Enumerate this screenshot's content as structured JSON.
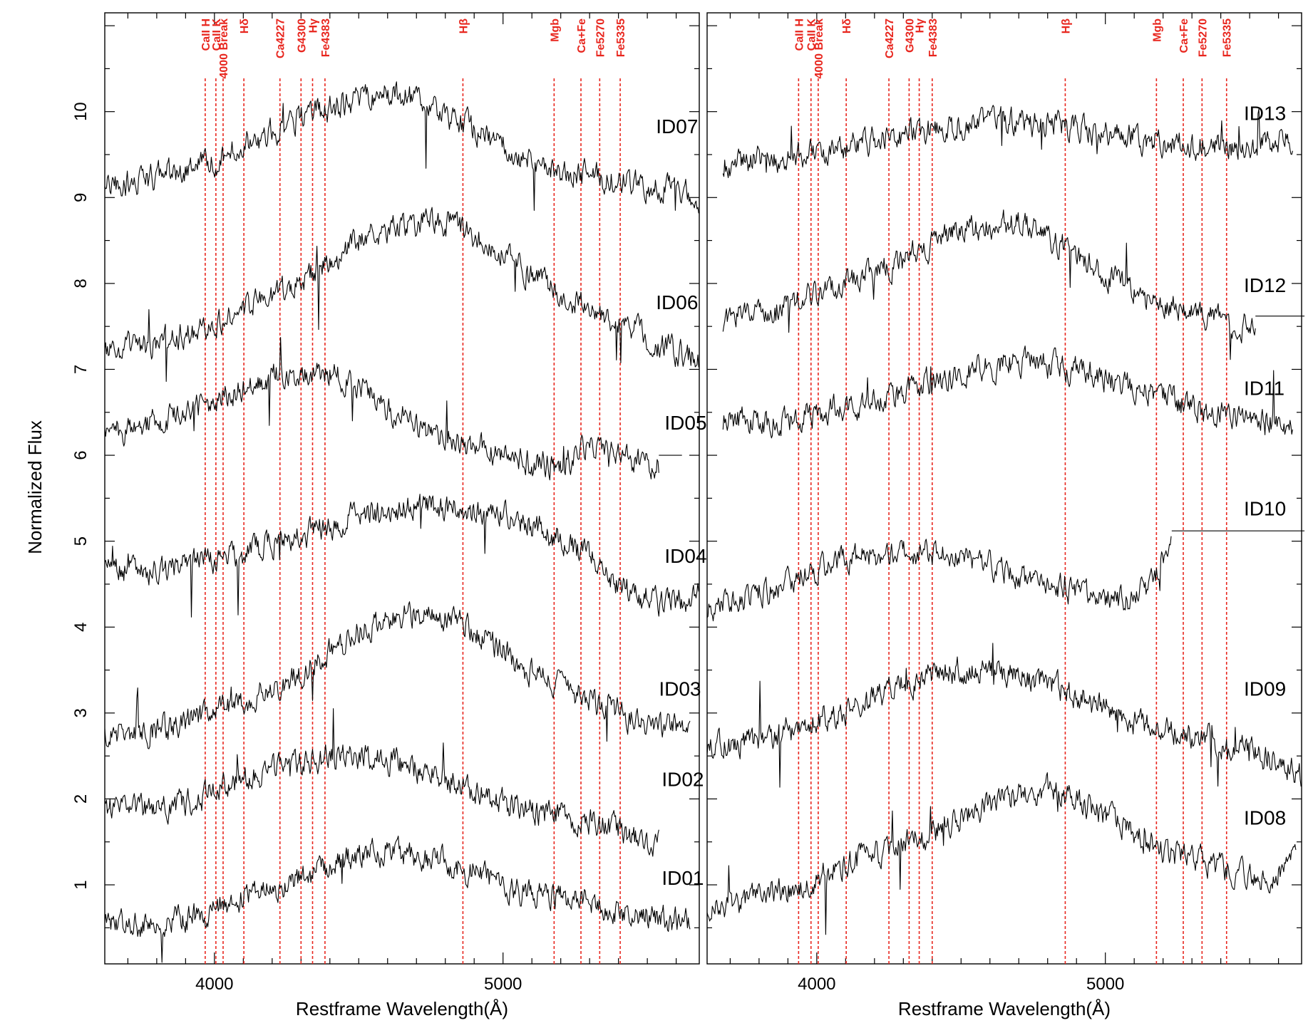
{
  "figure": {
    "ylabel": "Normalized Flux",
    "colors": {
      "spectrum": "#000000",
      "lines": "#e8261e",
      "axes": "#000000"
    }
  },
  "chart_data": [
    {
      "type": "line",
      "panel": "left",
      "xlabel": "Restframe Wavelength(Å)",
      "ylabel": "Normalized Flux",
      "xlim": [
        3620,
        5680
      ],
      "ylim": [
        0.08,
        11.15
      ],
      "xticks": [
        4000,
        5000
      ],
      "xminor_step": 100,
      "yticks": [
        1,
        2,
        3,
        4,
        5,
        6,
        7,
        8,
        9,
        10
      ],
      "yminor_step": 0.5,
      "grid": false,
      "line_marks": [
        {
          "label": "CaII H",
          "x": 3968
        },
        {
          "label": "CaII K",
          "x": 4005
        },
        {
          "label": "4000 Break",
          "x": 4030
        },
        {
          "label": "Hδ",
          "x": 4102
        },
        {
          "label": "Ca4227",
          "x": 4227
        },
        {
          "label": "G4300",
          "x": 4300
        },
        {
          "label": "Hγ",
          "x": 4340
        },
        {
          "label": "Fe4383",
          "x": 4383
        },
        {
          "label": "Hβ",
          "x": 4861
        },
        {
          "label": "Mgb",
          "x": 5177
        },
        {
          "label": "Ca+Fe",
          "x": 5270
        },
        {
          "label": "Fe5270",
          "x": 5335
        },
        {
          "label": "Fe5335",
          "x": 5406
        }
      ],
      "series": [
        {
          "name": "ID07",
          "label_x": 5530,
          "label_y": 9.75,
          "x_end": 5680,
          "x": [
            3620,
            3800,
            3950,
            4100,
            4250,
            4400,
            4500,
            4600,
            4700,
            4800,
            4900,
            5000,
            5100,
            5200,
            5300,
            5400,
            5480,
            5560,
            5680
          ],
          "y": [
            9.1,
            9.25,
            9.35,
            9.6,
            9.85,
            10.05,
            10.15,
            10.2,
            10.15,
            9.95,
            9.8,
            9.6,
            9.4,
            9.3,
            9.25,
            9.2,
            9.15,
            9.1,
            9.0
          ]
        },
        {
          "name": "ID06",
          "label_x": 5530,
          "label_y": 7.7,
          "x_end": 5680,
          "x": [
            3620,
            3800,
            3950,
            4100,
            4250,
            4400,
            4500,
            4600,
            4700,
            4800,
            4900,
            5000,
            5100,
            5200,
            5300,
            5400,
            5480,
            5560,
            5680
          ],
          "y": [
            7.2,
            7.3,
            7.5,
            7.7,
            7.95,
            8.25,
            8.5,
            8.65,
            8.7,
            8.7,
            8.55,
            8.35,
            8.1,
            7.9,
            7.7,
            7.55,
            7.4,
            7.25,
            7.1
          ]
        },
        {
          "name": "ID05",
          "label_x": 5560,
          "label_y": 6.3,
          "x_end": 5620,
          "tail_y": 6.0,
          "x": [
            3620,
            3800,
            3950,
            4100,
            4250,
            4400,
            4500,
            4600,
            4700,
            4800,
            4900,
            5000,
            5100,
            5200,
            5300,
            5400,
            5480,
            5540
          ],
          "y": [
            6.25,
            6.4,
            6.55,
            6.8,
            6.95,
            6.95,
            6.8,
            6.55,
            6.35,
            6.2,
            6.1,
            6.0,
            5.9,
            5.9,
            6.1,
            6.0,
            5.9,
            5.9
          ]
        },
        {
          "name": "ID04",
          "label_x": 5560,
          "label_y": 4.75,
          "x_end": 5680,
          "x": [
            3620,
            3800,
            3950,
            4100,
            4250,
            4400,
            4500,
            4600,
            4700,
            4800,
            4900,
            5000,
            5100,
            5200,
            5300,
            5400,
            5480,
            5560,
            5680
          ],
          "y": [
            4.7,
            4.65,
            4.75,
            4.85,
            5.0,
            5.2,
            5.3,
            5.35,
            5.4,
            5.4,
            5.35,
            5.3,
            5.2,
            5.0,
            4.8,
            4.5,
            4.35,
            4.3,
            4.35
          ]
        },
        {
          "name": "ID03",
          "label_x": 5540,
          "label_y": 3.2,
          "x_end": 5680,
          "x": [
            3620,
            3800,
            3950,
            4100,
            4250,
            4400,
            4500,
            4600,
            4700,
            4800,
            4900,
            5000,
            5100,
            5200,
            5300,
            5400,
            5480,
            5560,
            5650
          ],
          "y": [
            2.75,
            2.8,
            2.95,
            3.15,
            3.35,
            3.7,
            3.95,
            4.1,
            4.15,
            4.1,
            3.95,
            3.7,
            3.45,
            3.3,
            3.15,
            3.0,
            2.9,
            2.8,
            2.9
          ]
        },
        {
          "name": "ID02",
          "label_x": 5550,
          "label_y": 2.15,
          "x_end": 5560,
          "x": [
            3620,
            3800,
            3950,
            4100,
            4250,
            4400,
            4500,
            4600,
            4700,
            4800,
            4900,
            5000,
            5100,
            5200,
            5300,
            5400,
            5480,
            5540
          ],
          "y": [
            1.9,
            1.9,
            2.0,
            2.25,
            2.4,
            2.5,
            2.5,
            2.45,
            2.35,
            2.25,
            2.1,
            1.95,
            1.85,
            1.8,
            1.75,
            1.65,
            1.5,
            1.45
          ]
        },
        {
          "name": "ID01",
          "label_x": 5550,
          "label_y": 1.0,
          "x_end": 5680,
          "x": [
            3620,
            3800,
            3950,
            4100,
            4250,
            4400,
            4500,
            4600,
            4700,
            4800,
            4900,
            5000,
            5100,
            5200,
            5300,
            5400,
            5480,
            5560,
            5650
          ],
          "y": [
            0.5,
            0.55,
            0.65,
            0.85,
            1.0,
            1.2,
            1.35,
            1.4,
            1.35,
            1.25,
            1.15,
            1.0,
            0.9,
            0.85,
            0.8,
            0.7,
            0.65,
            0.6,
            0.55
          ]
        }
      ]
    },
    {
      "type": "line",
      "panel": "right",
      "xlabel": "Restframe Wavelength(Å)",
      "ylabel": "",
      "xlim": [
        3620,
        5680
      ],
      "ylim": [
        0.08,
        11.15
      ],
      "xticks": [
        4000,
        5000
      ],
      "xminor_step": 100,
      "yticks": [
        1,
        2,
        3,
        4,
        5,
        6,
        7,
        8,
        9,
        10
      ],
      "yminor_step": 0.5,
      "grid": false,
      "line_marks": [
        {
          "label": "CaII H",
          "x": 3937
        },
        {
          "label": "CaII K",
          "x": 3980
        },
        {
          "label": "4000 Break",
          "x": 4005
        },
        {
          "label": "Hδ",
          "x": 4102
        },
        {
          "label": "Ca4227",
          "x": 4250
        },
        {
          "label": "G4300",
          "x": 4320
        },
        {
          "label": "Hγ",
          "x": 4355
        },
        {
          "label": "Fe4383",
          "x": 4400
        },
        {
          "label": "Hβ",
          "x": 4861
        },
        {
          "label": "Mgb",
          "x": 5177
        },
        {
          "label": "Ca+Fe",
          "x": 5270
        },
        {
          "label": "Fe5270",
          "x": 5335
        },
        {
          "label": "Fe5335",
          "x": 5420
        }
      ],
      "series": [
        {
          "name": "ID13",
          "label_x": 5480,
          "label_y": 9.9,
          "x_end": 5650,
          "x": [
            3675,
            3800,
            3950,
            4100,
            4250,
            4400,
            4500,
            4600,
            4700,
            4800,
            4900,
            5000,
            5100,
            5200,
            5300,
            5400,
            5480,
            5560,
            5650
          ],
          "y": [
            9.4,
            9.45,
            9.5,
            9.6,
            9.7,
            9.8,
            9.85,
            9.9,
            9.9,
            9.85,
            9.8,
            9.75,
            9.7,
            9.65,
            9.6,
            9.6,
            9.6,
            9.65,
            9.7
          ]
        },
        {
          "name": "ID12",
          "label_x": 5480,
          "label_y": 7.9,
          "x_end": 5690,
          "tail_y": 7.62,
          "x": [
            3675,
            3800,
            3950,
            4100,
            4250,
            4400,
            4500,
            4600,
            4700,
            4800,
            4900,
            5000,
            5100,
            5200,
            5300,
            5400,
            5480,
            5520
          ],
          "y": [
            7.55,
            7.65,
            7.8,
            8.0,
            8.2,
            8.45,
            8.6,
            8.7,
            8.7,
            8.55,
            8.3,
            8.1,
            7.9,
            7.75,
            7.65,
            7.55,
            7.5,
            7.55
          ]
        },
        {
          "name": "ID11",
          "label_x": 5480,
          "label_y": 6.7,
          "x_end": 5650,
          "x": [
            3675,
            3800,
            3950,
            4100,
            4250,
            4400,
            4500,
            4600,
            4700,
            4800,
            4900,
            5000,
            5100,
            5200,
            5300,
            5400,
            5480,
            5560,
            5650
          ],
          "y": [
            6.4,
            6.4,
            6.45,
            6.55,
            6.7,
            6.85,
            6.95,
            7.05,
            7.1,
            7.05,
            7.0,
            6.9,
            6.8,
            6.7,
            6.55,
            6.5,
            6.45,
            6.4,
            6.3
          ]
        },
        {
          "name": "ID10",
          "label_x": 5480,
          "label_y": 5.3,
          "x_end": 5690,
          "tail_y": 5.12,
          "x": [
            3620,
            3800,
            3950,
            4100,
            4250,
            4400,
            4500,
            4600,
            4700,
            4800,
            4900,
            5000,
            5100,
            5160,
            5200,
            5230
          ],
          "y": [
            4.2,
            4.4,
            4.6,
            4.8,
            4.85,
            4.85,
            4.8,
            4.7,
            4.6,
            4.5,
            4.4,
            4.3,
            4.35,
            4.5,
            4.85,
            5.12
          ]
        },
        {
          "name": "ID09",
          "label_x": 5480,
          "label_y": 3.2,
          "x_end": 5680,
          "x": [
            3620,
            3800,
            3950,
            4100,
            4250,
            4400,
            4500,
            4600,
            4700,
            4800,
            4900,
            5000,
            5100,
            5200,
            5300,
            5400,
            5480,
            5560,
            5680
          ],
          "y": [
            2.6,
            2.7,
            2.85,
            3.05,
            3.25,
            3.45,
            3.5,
            3.5,
            3.45,
            3.35,
            3.2,
            3.05,
            2.9,
            2.8,
            2.75,
            2.65,
            2.6,
            2.5,
            2.25
          ]
        },
        {
          "name": "ID08",
          "label_x": 5480,
          "label_y": 1.7,
          "x_end": 5670,
          "x": [
            3620,
            3800,
            3950,
            4100,
            4250,
            4400,
            4500,
            4600,
            4700,
            4800,
            4900,
            5000,
            5100,
            5200,
            5300,
            5400,
            5480,
            5560,
            5660
          ],
          "y": [
            0.75,
            0.85,
            1.0,
            1.25,
            1.4,
            1.6,
            1.8,
            1.95,
            2.05,
            2.1,
            2.0,
            1.8,
            1.6,
            1.4,
            1.3,
            1.2,
            1.1,
            1.05,
            1.35
          ]
        }
      ]
    }
  ]
}
